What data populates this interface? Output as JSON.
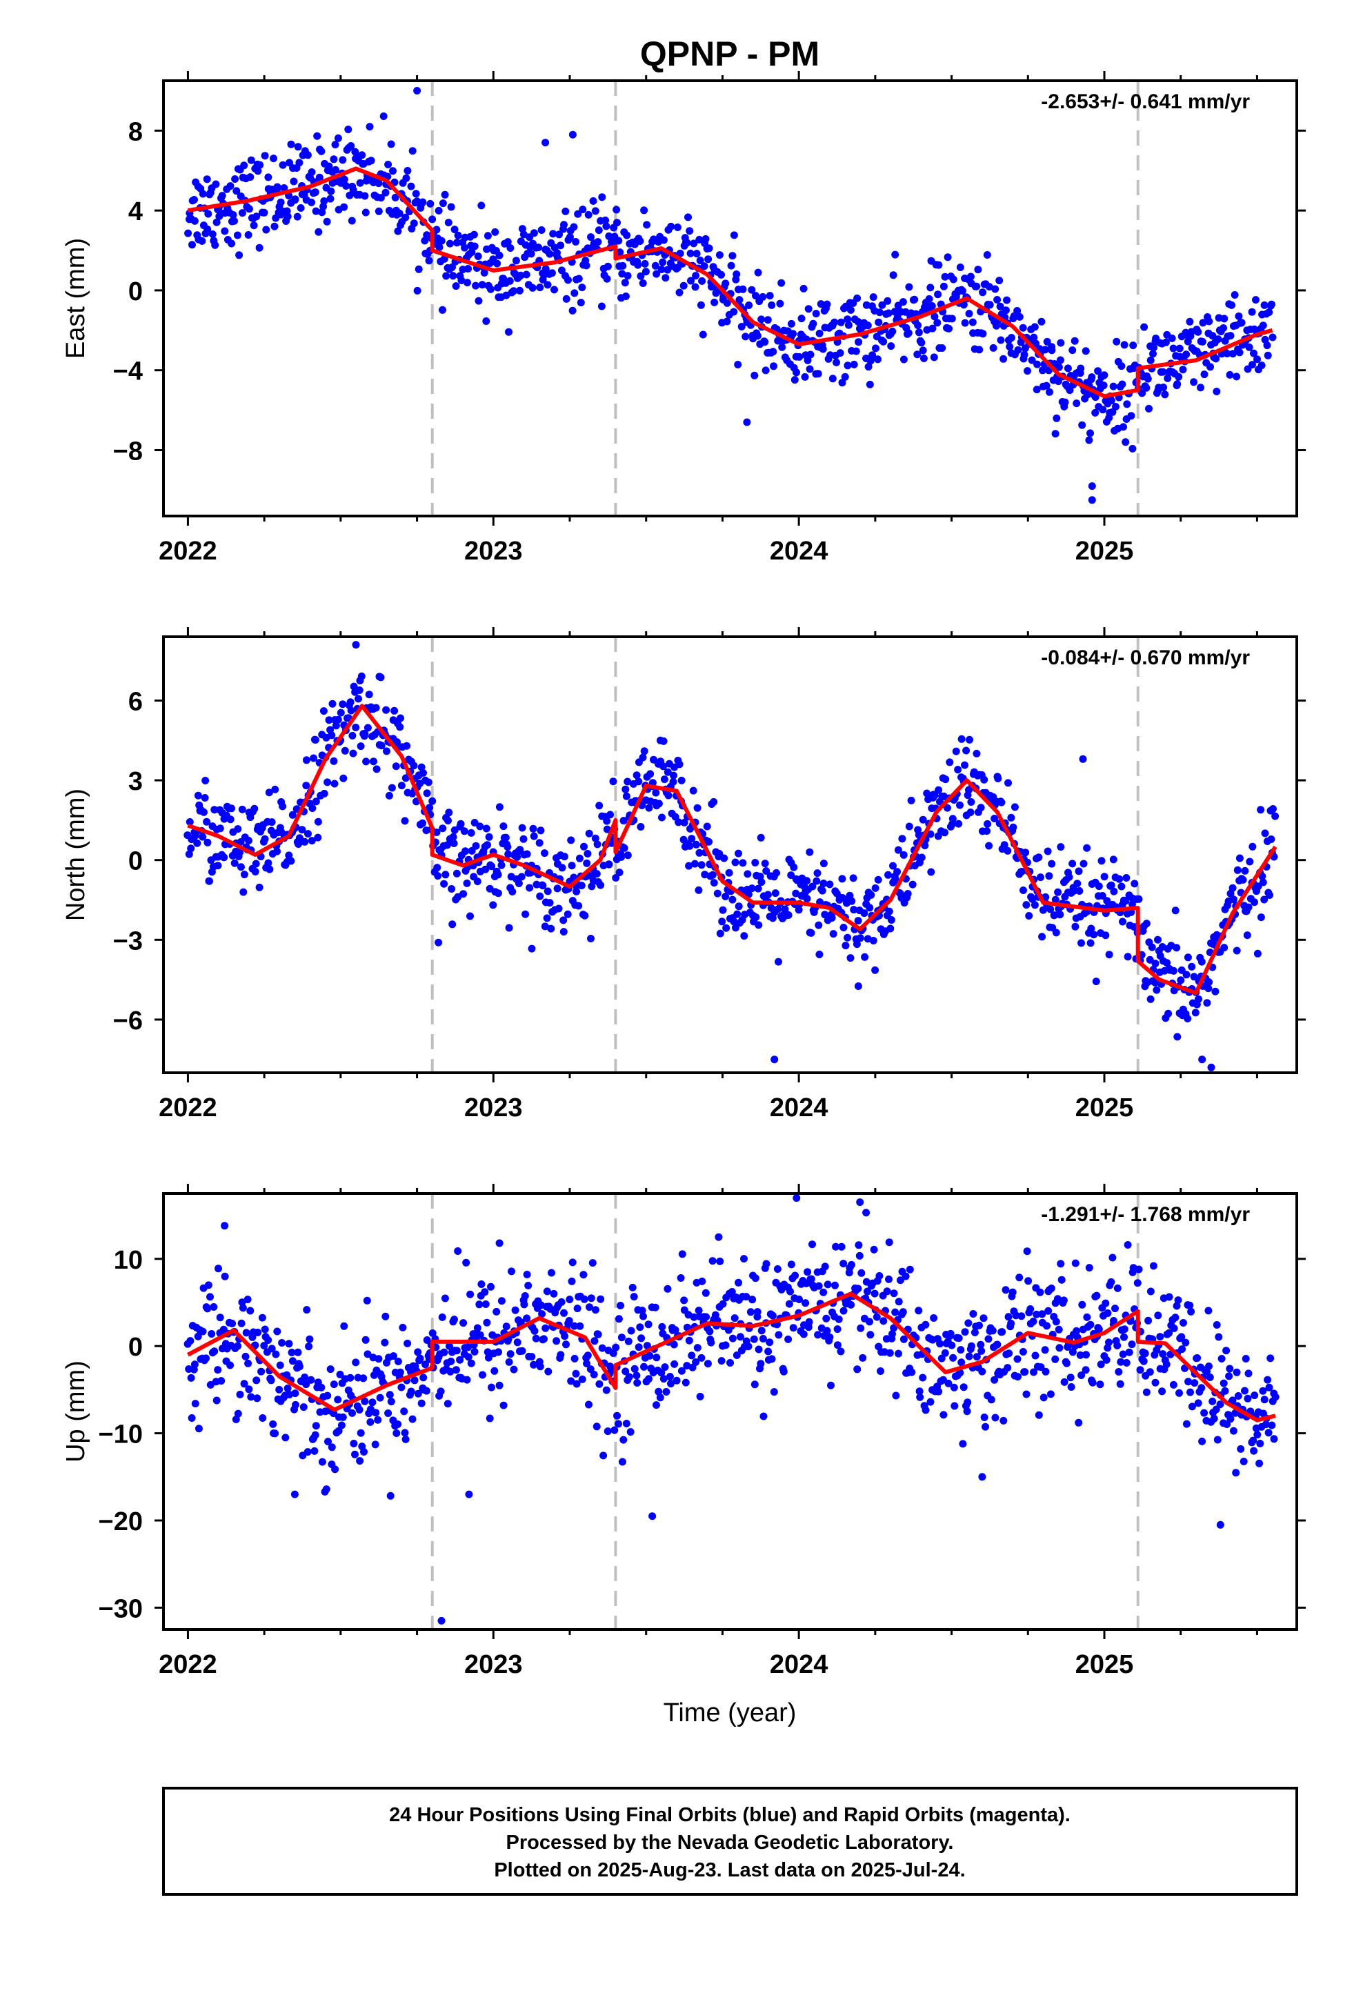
{
  "title": "QPNP - PM",
  "xlabel": "Time (year)",
  "colors": {
    "points": "#0000ff",
    "fit": "#ff0000",
    "events": "#c0c0c0",
    "frame": "#000000"
  },
  "x_ticks": [
    2022,
    2023,
    2024,
    2025
  ],
  "events": [
    2022.8,
    2023.4,
    2025.11
  ],
  "footer": [
    "24 Hour Positions Using Final Orbits (blue) and Rapid Orbits (magenta).",
    "Processed by the Nevada Geodetic Laboratory.",
    "Plotted on 2025-Aug-23. Last data on 2025-Jul-24."
  ],
  "chart_data": [
    {
      "type": "scatter",
      "ylabel": "East (mm)",
      "rate": "-2.653+/- 0.641 mm/yr",
      "xlim": [
        2021.92,
        2025.63
      ],
      "ylim": [
        -11.3,
        10.5
      ],
      "yticks": [
        8,
        4,
        0,
        -4,
        -8
      ],
      "yticklabels": [
        "8",
        "4",
        "0",
        "−4",
        "−8"
      ],
      "fit": {
        "x": [
          2022.0,
          2022.2,
          2022.4,
          2022.55,
          2022.65,
          2022.8,
          2022.8,
          2023.0,
          2023.2,
          2023.4,
          2023.4,
          2023.55,
          2023.7,
          2023.85,
          2024.0,
          2024.2,
          2024.4,
          2024.55,
          2024.7,
          2024.85,
          2025.0,
          2025.11,
          2025.11,
          2025.3,
          2025.5,
          2025.55
        ],
        "y": [
          4.0,
          4.5,
          5.2,
          6.1,
          5.5,
          3.0,
          2.0,
          1.0,
          1.4,
          2.2,
          1.6,
          2.1,
          0.8,
          -1.6,
          -2.7,
          -2.2,
          -1.3,
          -0.4,
          -1.8,
          -4.2,
          -5.3,
          -5.0,
          -3.9,
          -3.5,
          -2.2,
          -2.0
        ]
      },
      "scatter": {
        "spread": 1.1,
        "outliers": [
          {
            "x": 2022.75,
            "y": 10.0
          },
          {
            "x": 2024.96,
            "y": -10.5
          },
          {
            "x": 2024.96,
            "y": -9.8
          },
          {
            "x": 2023.17,
            "y": 7.4
          },
          {
            "x": 2023.26,
            "y": 7.8
          },
          {
            "x": 2023.83,
            "y": -6.6
          },
          {
            "x": 2024.95,
            "y": -7.5
          }
        ]
      }
    },
    {
      "type": "scatter",
      "ylabel": "North (mm)",
      "rate": "-0.084+/- 0.670 mm/yr",
      "xlim": [
        2021.92,
        2025.63
      ],
      "ylim": [
        -8.0,
        8.4
      ],
      "yticks": [
        6,
        3,
        0,
        -3,
        -6
      ],
      "yticklabels": [
        "6",
        "3",
        "0",
        "−3",
        "−6"
      ],
      "fit": {
        "x": [
          2022.0,
          2022.1,
          2022.22,
          2022.33,
          2022.45,
          2022.57,
          2022.7,
          2022.8,
          2022.8,
          2022.9,
          2023.0,
          2023.1,
          2023.25,
          2023.35,
          2023.4,
          2023.4,
          2023.5,
          2023.6,
          2023.75,
          2023.85,
          2024.0,
          2024.1,
          2024.2,
          2024.3,
          2024.45,
          2024.55,
          2024.65,
          2024.8,
          2025.0,
          2025.11,
          2025.11,
          2025.18,
          2025.3,
          2025.42,
          2025.56
        ],
        "y": [
          1.3,
          0.9,
          0.2,
          0.9,
          3.8,
          5.8,
          3.9,
          1.2,
          0.2,
          -0.2,
          0.2,
          -0.2,
          -1.0,
          0.0,
          1.5,
          0.3,
          2.8,
          2.6,
          -0.8,
          -1.6,
          -1.6,
          -1.8,
          -2.6,
          -1.5,
          1.8,
          3.0,
          1.8,
          -1.6,
          -1.9,
          -1.8,
          -3.8,
          -4.5,
          -5.0,
          -2.0,
          0.5
        ]
      },
      "scatter": {
        "spread": 0.9,
        "outliers": [
          {
            "x": 2022.55,
            "y": 8.1
          },
          {
            "x": 2023.92,
            "y": -7.5
          },
          {
            "x": 2025.32,
            "y": -7.5
          },
          {
            "x": 2025.35,
            "y": -7.8
          },
          {
            "x": 2024.93,
            "y": 3.8
          },
          {
            "x": 2022.82,
            "y": -3.1
          }
        ]
      }
    },
    {
      "type": "scatter",
      "ylabel": "Up (mm)",
      "rate": "-1.291+/- 1.768 mm/yr",
      "xlim": [
        2021.92,
        2025.63
      ],
      "ylim": [
        -32.5,
        17.5
      ],
      "yticks": [
        10,
        0,
        -10,
        -20,
        -30
      ],
      "yticklabels": [
        "10",
        "0",
        "−10",
        "−20",
        "−30"
      ],
      "fit": {
        "x": [
          2022.0,
          2022.15,
          2022.3,
          2022.48,
          2022.65,
          2022.8,
          2022.8,
          2023.0,
          2023.15,
          2023.3,
          2023.4,
          2023.4,
          2023.55,
          2023.7,
          2023.85,
          2024.0,
          2024.17,
          2024.3,
          2024.48,
          2024.6,
          2024.75,
          2024.9,
          2025.0,
          2025.11,
          2025.11,
          2025.2,
          2025.4,
          2025.5,
          2025.56
        ],
        "y": [
          -1.0,
          1.8,
          -3.5,
          -7.3,
          -4.5,
          -2.5,
          0.5,
          0.5,
          3.2,
          1.0,
          -4.8,
          -2.2,
          0.2,
          2.6,
          2.3,
          3.5,
          6.0,
          3.2,
          -3.0,
          -1.8,
          1.5,
          0.4,
          1.5,
          4.0,
          0.5,
          0.3,
          -6.5,
          -8.5,
          -8.0
        ]
      },
      "scatter": {
        "spread": 3.8,
        "outliers": [
          {
            "x": 2022.83,
            "y": -31.5
          },
          {
            "x": 2023.52,
            "y": -19.5
          },
          {
            "x": 2025.38,
            "y": -20.5
          },
          {
            "x": 2024.2,
            "y": 16.5
          },
          {
            "x": 2024.6,
            "y": -15.0
          },
          {
            "x": 2022.35,
            "y": -17.0
          },
          {
            "x": 2022.92,
            "y": -17.0
          },
          {
            "x": 2023.02,
            "y": 11.8
          },
          {
            "x": 2022.12,
            "y": 13.8
          },
          {
            "x": 2024.22,
            "y": 15.3
          }
        ]
      }
    }
  ]
}
